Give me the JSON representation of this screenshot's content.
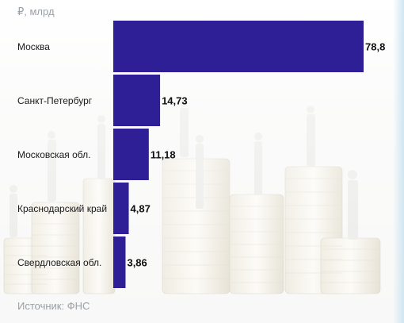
{
  "header": {
    "unit": "₽, млрд"
  },
  "footer": {
    "source": "Источник: ФНС"
  },
  "colors": {
    "bar": "#2f1f96",
    "muted_text": "#9aa0a8"
  },
  "chart_data": {
    "type": "bar",
    "orientation": "horizontal",
    "categories": [
      "Москва",
      "Санкт-Петербург",
      "Московская обл.",
      "Краснодарский край",
      "Свердловская обл."
    ],
    "values": [
      78.8,
      14.73,
      11.18,
      4.87,
      3.86
    ],
    "value_labels": [
      "78,8",
      "14,73",
      "11,18",
      "4,87",
      "3,86"
    ],
    "xlim": [
      0,
      78.8
    ],
    "grid": false
  }
}
